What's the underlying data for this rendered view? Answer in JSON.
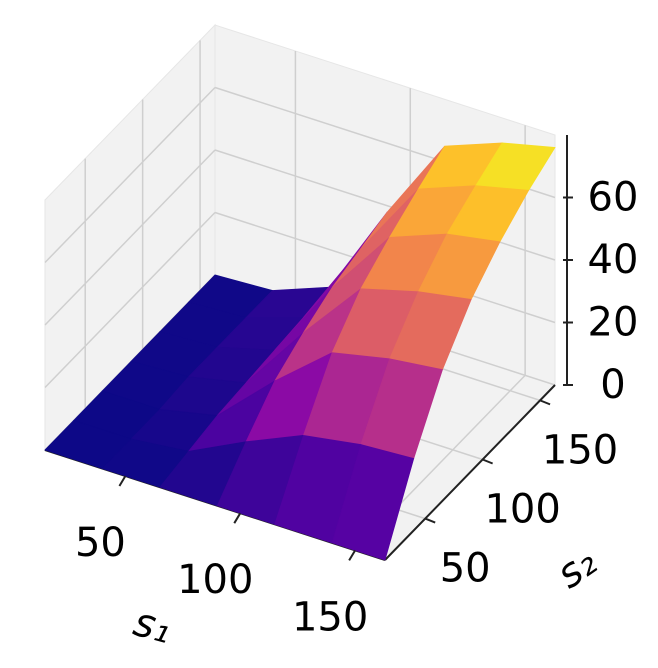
{
  "chart_data": {
    "type": "surface",
    "xlabel": "s₁",
    "ylabel": "s₂",
    "x": [
      15,
      40,
      65,
      90,
      115,
      140,
      163
    ],
    "y": [
      15,
      40,
      65,
      90,
      115,
      140,
      163
    ],
    "z": [
      [
        0,
        0,
        0,
        0,
        0,
        0,
        0
      ],
      [
        0,
        0,
        2,
        11,
        19,
        22,
        23
      ],
      [
        0,
        0,
        4,
        21,
        36,
        40,
        42
      ],
      [
        0,
        1,
        5,
        27,
        47,
        52,
        55
      ],
      [
        0,
        1,
        6,
        32,
        54,
        61,
        64
      ],
      [
        0,
        1,
        7,
        35,
        60,
        67,
        71
      ],
      [
        0,
        1,
        8,
        38,
        65,
        72,
        76
      ]
    ],
    "xlim": [
      15,
      163
    ],
    "ylim": [
      15,
      163
    ],
    "zlim": [
      0,
      80
    ],
    "xticks": [
      50,
      100,
      150
    ],
    "yticks": [
      50,
      100,
      150
    ],
    "zticks": [
      0,
      20,
      40,
      60
    ],
    "colormap": "plasma",
    "grid": true
  }
}
